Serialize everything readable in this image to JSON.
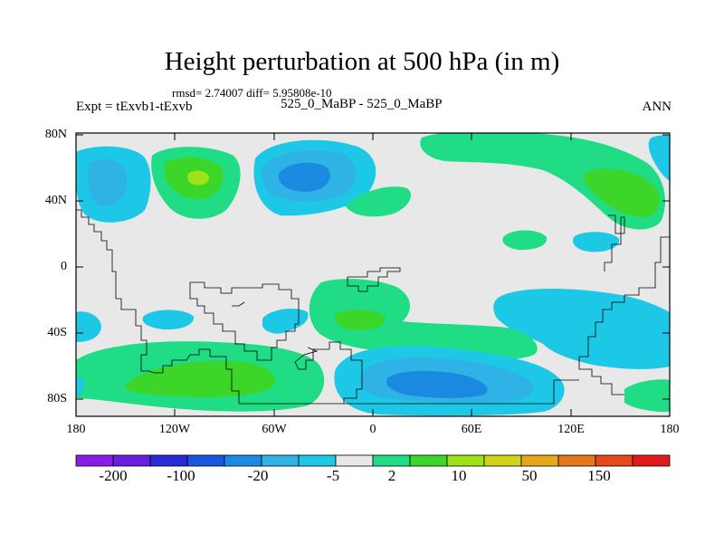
{
  "title": "Height perturbation at 500 hPa (in m)",
  "stats": "rmsd= 2.74007 diff= 5.95808e-10",
  "left_label": "Expt = tExvb1-tExvb",
  "center_label": "525_0_MaBP - 525_0_MaBP",
  "right_label": "ANN",
  "lat_labels": [
    "80N",
    "40N",
    "0",
    "40S",
    "80S"
  ],
  "lon_labels": [
    "180",
    "120W",
    "60W",
    "0",
    "60E",
    "120E",
    "180"
  ],
  "colorbar": {
    "labels": [
      "-200",
      "-100",
      "-20",
      "-5",
      "2",
      "10",
      "50",
      "150"
    ],
    "colors": [
      "#8b1ee6",
      "#6a1fe0",
      "#2a2ad8",
      "#1a55e0",
      "#1a8ae0",
      "#2fb2e6",
      "#1cc8e6",
      "#e8e8e8",
      "#1fdc85",
      "#3cd62a",
      "#9ee21a",
      "#d2d21a",
      "#e6a81a",
      "#e6781a",
      "#e6481a",
      "#e21a1a"
    ]
  },
  "palette": {
    "background": "#e8e8e8",
    "cyan": "#1cc8e6",
    "light_blue": "#2fb2e6",
    "blue": "#1a8ae0",
    "dark_blue": "#1a55e0",
    "light_green": "#1fdc85",
    "green": "#3cd62a",
    "yellow_green": "#9ee21a"
  }
}
